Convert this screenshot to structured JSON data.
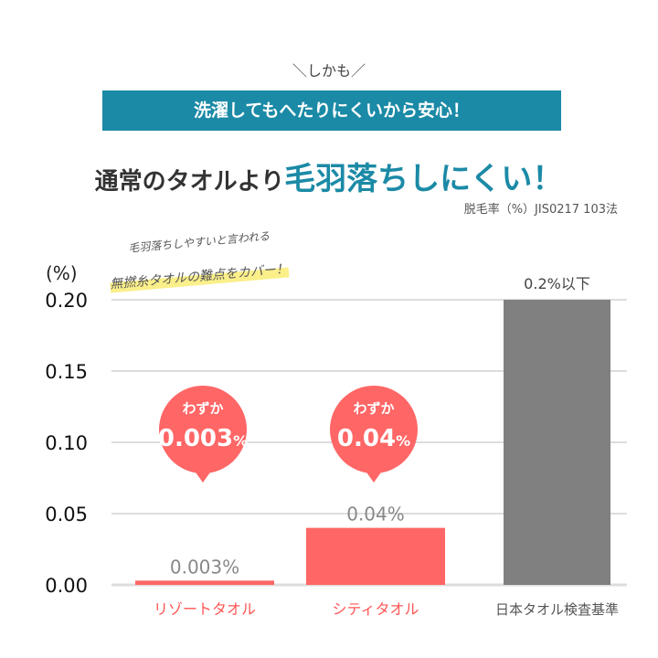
{
  "intro": "＼しかも／",
  "banner": "洗濯してもへたりにくいから安心！",
  "headline": {
    "prefix": "通常のタオルより",
    "highlight": "毛羽落ちしにくい！"
  },
  "note": "脱毛率（%）JIS0217 103法",
  "handwritten": {
    "line1": "毛羽落ちしやすいと言われる",
    "line2": "無撚糸タオルの難点をカバー！"
  },
  "chart_data": {
    "type": "bar",
    "ylabel": "(%)",
    "ylim": [
      0,
      0.2
    ],
    "yticks": [
      "0.00",
      "0.05",
      "0.10",
      "0.15",
      "0.20"
    ],
    "grid": true,
    "categories": [
      "リゾートタオル",
      "シティタオル",
      "日本タオル検査基準"
    ],
    "values": [
      0.003,
      0.04,
      0.2
    ],
    "data_labels": [
      "0.003%",
      "0.04%",
      "0.2%以下"
    ],
    "colors": [
      "#ff6666",
      "#ff6666",
      "#808080"
    ],
    "callouts": [
      {
        "top": "わずか",
        "value": "0.003",
        "unit": "%"
      },
      {
        "top": "わずか",
        "value": "0.04",
        "unit": "%"
      }
    ]
  }
}
